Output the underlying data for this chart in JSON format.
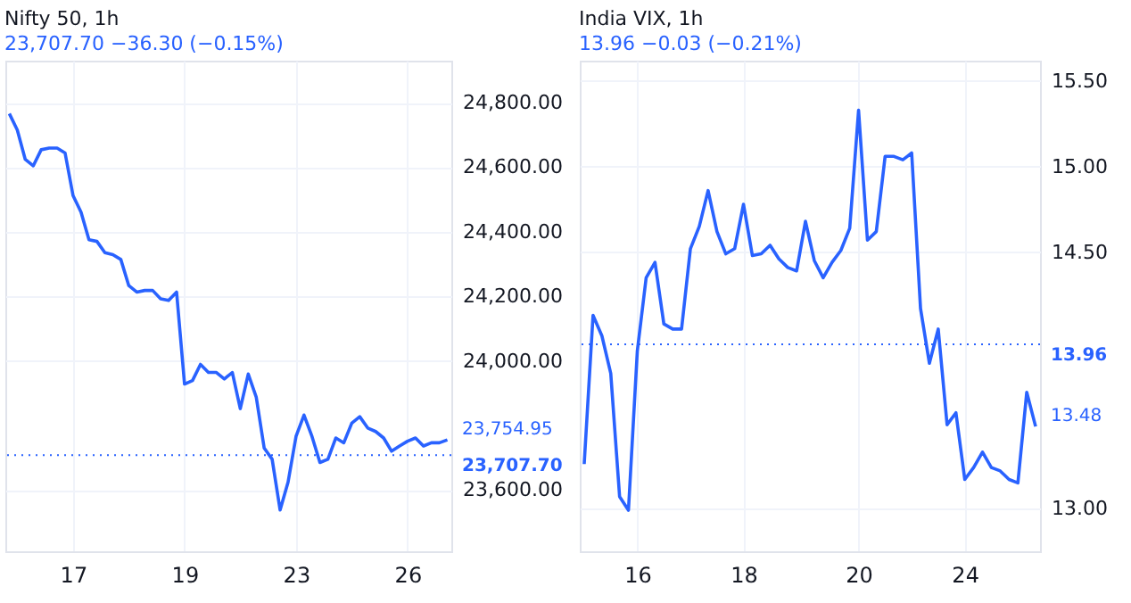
{
  "chart_data": [
    {
      "type": "line",
      "title": "Nifty 50, 1h",
      "subtitle": "23,707.70 −36.30 (−0.15%)",
      "categories": [
        null,
        null,
        null,
        null,
        null,
        null,
        null,
        null,
        "17",
        null,
        null,
        null,
        null,
        null,
        null,
        null,
        null,
        null,
        null,
        null,
        null,
        null,
        "19",
        null,
        null,
        null,
        null,
        null,
        null,
        null,
        null,
        null,
        null,
        null,
        null,
        null,
        "23",
        null,
        null,
        null,
        null,
        null,
        null,
        null,
        null,
        null,
        null,
        null,
        null,
        null,
        "26",
        null,
        null,
        null,
        null,
        null
      ],
      "series": [
        {
          "color": "#2962ff",
          "values": [
            24766,
            24715,
            24624,
            24604,
            24654,
            24659,
            24659,
            24644,
            24512,
            24461,
            24375,
            24370,
            24335,
            24329,
            24314,
            24233,
            24213,
            24218,
            24218,
            24192,
            24187,
            24213,
            23928,
            23939,
            23989,
            23964,
            23964,
            23944,
            23964,
            23852,
            23959,
            23888,
            23730,
            23695,
            23538,
            23624,
            23766,
            23832,
            23766,
            23685,
            23695,
            23761,
            23746,
            23807,
            23827,
            23792,
            23781,
            23761,
            23720,
            23736,
            23751,
            23761,
            23736,
            23746,
            23746,
            23755
          ]
        }
      ],
      "ylim": [
        23410,
        24930
      ],
      "yticks": [
        {
          "value": 23600,
          "label": "23,600.00"
        },
        {
          "value": 24000,
          "label": "24,000.00"
        },
        {
          "value": 24200,
          "label": "24,200.00"
        },
        {
          "value": 24400,
          "label": "24,400.00"
        },
        {
          "value": 24600,
          "label": "24,600.00"
        },
        {
          "value": 24800,
          "label": "24,800.00"
        }
      ],
      "ref_lines": [
        {
          "axis": "y",
          "value": 23707.7,
          "label": "23,707.70",
          "color": "#2962ff",
          "line_style": "dotted"
        }
      ],
      "annotations": [
        "23,754.95"
      ],
      "grid": true,
      "line_style": "solid"
    },
    {
      "type": "line",
      "title": "India VIX, 1h",
      "subtitle": "13.96 −0.03 (−0.21%)",
      "categories": [
        null,
        null,
        null,
        null,
        null,
        null,
        "16",
        null,
        null,
        null,
        null,
        null,
        null,
        null,
        null,
        null,
        null,
        null,
        "18",
        null,
        null,
        null,
        null,
        null,
        null,
        null,
        null,
        null,
        null,
        null,
        null,
        "20",
        null,
        null,
        null,
        null,
        null,
        null,
        null,
        null,
        null,
        null,
        null,
        "24",
        null,
        null,
        null,
        null,
        null,
        null,
        null,
        null
      ],
      "series": [
        {
          "color": "#2962ff",
          "values": [
            13.26,
            14.13,
            14.01,
            13.79,
            13.07,
            12.99,
            13.92,
            14.35,
            14.44,
            14.08,
            14.05,
            14.05,
            14.52,
            14.65,
            14.86,
            14.62,
            14.49,
            14.52,
            14.78,
            14.48,
            14.49,
            14.54,
            14.46,
            14.41,
            14.39,
            14.68,
            14.45,
            14.35,
            14.44,
            14.51,
            14.64,
            15.33,
            14.57,
            14.62,
            15.06,
            15.06,
            15.04,
            15.08,
            14.17,
            13.85,
            14.05,
            13.49,
            13.56,
            13.17,
            13.24,
            13.33,
            13.24,
            13.22,
            13.17,
            13.15,
            13.68,
            13.48
          ]
        }
      ],
      "ylim": [
        12.75,
        15.62
      ],
      "yticks": [
        {
          "value": 13,
          "label": "13.00"
        },
        {
          "value": 14.5,
          "label": "14.50"
        },
        {
          "value": 15,
          "label": "15.00"
        },
        {
          "value": 15.5,
          "label": "15.50"
        }
      ],
      "ref_lines": [
        {
          "axis": "y",
          "value": 13.96,
          "label": "13.96",
          "color": "#2962ff",
          "line_style": "dotted"
        }
      ],
      "annotations": [
        "13.48"
      ],
      "grid": true,
      "line_style": "solid"
    }
  ]
}
